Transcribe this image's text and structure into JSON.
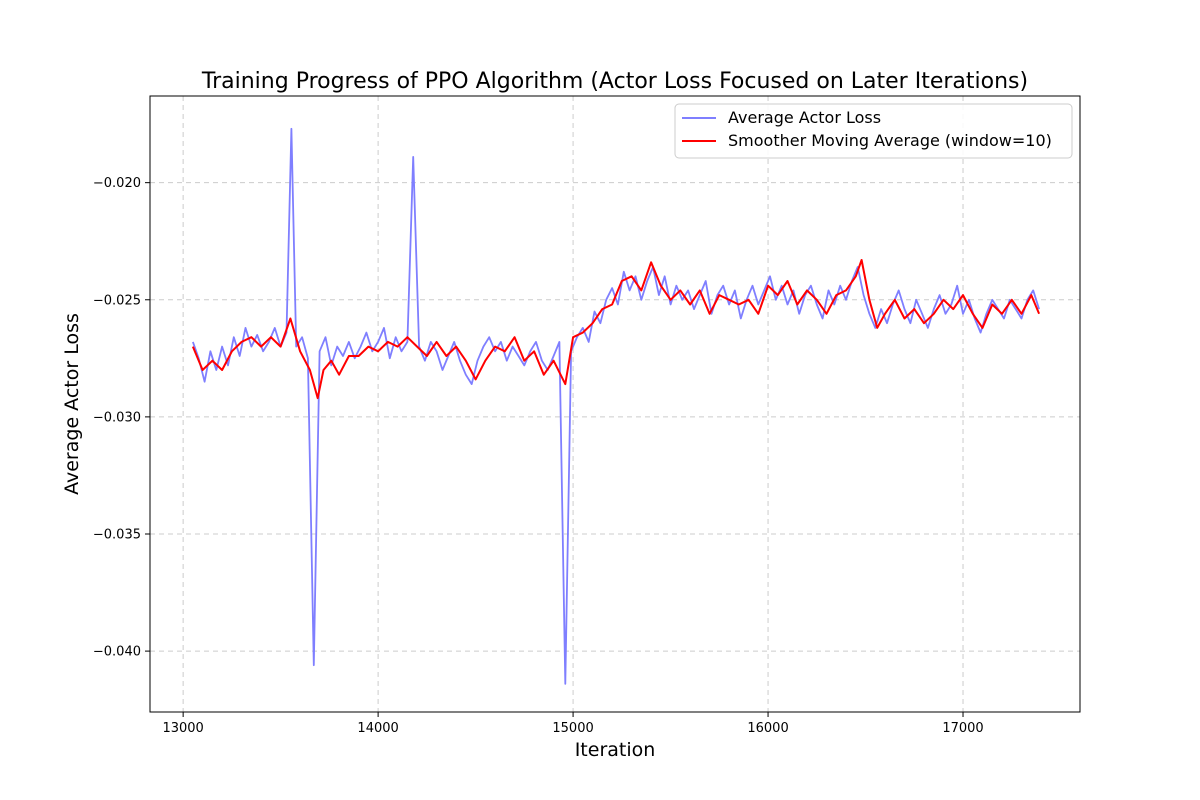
{
  "chart_data": {
    "type": "line",
    "title": "Training Progress of PPO Algorithm (Actor Loss Focused on Later Iterations)",
    "xlabel": "Iteration",
    "ylabel": "Average Actor Loss",
    "xlim": [
      12830,
      17600
    ],
    "ylim": [
      -0.0426,
      -0.0163
    ],
    "x_ticks": [
      13000,
      14000,
      15000,
      16000,
      17000
    ],
    "x_tick_labels": [
      "13000",
      "14000",
      "15000",
      "16000",
      "17000"
    ],
    "y_ticks": [
      -0.04,
      -0.035,
      -0.03,
      -0.025,
      -0.02
    ],
    "y_tick_labels": [
      "−0.040",
      "−0.035",
      "−0.030",
      "−0.025",
      "−0.020"
    ],
    "grid": true,
    "legend_position": "top-right",
    "series": [
      {
        "name": "Average Actor Loss",
        "color": "#7f7fff",
        "points": [
          [
            13050,
            -0.0268
          ],
          [
            13080,
            -0.0275
          ],
          [
            13110,
            -0.0285
          ],
          [
            13140,
            -0.0272
          ],
          [
            13170,
            -0.028
          ],
          [
            13200,
            -0.027
          ],
          [
            13230,
            -0.0278
          ],
          [
            13260,
            -0.0266
          ],
          [
            13290,
            -0.0274
          ],
          [
            13320,
            -0.0262
          ],
          [
            13350,
            -0.027
          ],
          [
            13380,
            -0.0265
          ],
          [
            13410,
            -0.0272
          ],
          [
            13440,
            -0.0268
          ],
          [
            13470,
            -0.0262
          ],
          [
            13500,
            -0.027
          ],
          [
            13530,
            -0.0264
          ],
          [
            13555,
            -0.0177
          ],
          [
            13580,
            -0.027
          ],
          [
            13610,
            -0.0266
          ],
          [
            13640,
            -0.0275
          ],
          [
            13670,
            -0.0406
          ],
          [
            13700,
            -0.0272
          ],
          [
            13730,
            -0.0266
          ],
          [
            13760,
            -0.0278
          ],
          [
            13790,
            -0.027
          ],
          [
            13820,
            -0.0274
          ],
          [
            13850,
            -0.0268
          ],
          [
            13880,
            -0.0275
          ],
          [
            13910,
            -0.027
          ],
          [
            13940,
            -0.0264
          ],
          [
            13970,
            -0.0272
          ],
          [
            14000,
            -0.0268
          ],
          [
            14030,
            -0.0262
          ],
          [
            14060,
            -0.0275
          ],
          [
            14090,
            -0.0266
          ],
          [
            14120,
            -0.0272
          ],
          [
            14150,
            -0.0268
          ],
          [
            14180,
            -0.0189
          ],
          [
            14210,
            -0.027
          ],
          [
            14240,
            -0.0276
          ],
          [
            14270,
            -0.0268
          ],
          [
            14300,
            -0.0272
          ],
          [
            14330,
            -0.028
          ],
          [
            14360,
            -0.0274
          ],
          [
            14390,
            -0.0268
          ],
          [
            14420,
            -0.0276
          ],
          [
            14450,
            -0.0282
          ],
          [
            14480,
            -0.0286
          ],
          [
            14510,
            -0.0276
          ],
          [
            14540,
            -0.027
          ],
          [
            14570,
            -0.0266
          ],
          [
            14600,
            -0.0272
          ],
          [
            14630,
            -0.0268
          ],
          [
            14660,
            -0.0276
          ],
          [
            14690,
            -0.027
          ],
          [
            14720,
            -0.0274
          ],
          [
            14750,
            -0.0278
          ],
          [
            14780,
            -0.0272
          ],
          [
            14810,
            -0.0268
          ],
          [
            14840,
            -0.0276
          ],
          [
            14870,
            -0.028
          ],
          [
            14900,
            -0.0274
          ],
          [
            14930,
            -0.0268
          ],
          [
            14960,
            -0.0414
          ],
          [
            14990,
            -0.0272
          ],
          [
            15020,
            -0.0266
          ],
          [
            15050,
            -0.0262
          ],
          [
            15080,
            -0.0268
          ],
          [
            15110,
            -0.0255
          ],
          [
            15140,
            -0.026
          ],
          [
            15170,
            -0.025
          ],
          [
            15200,
            -0.0245
          ],
          [
            15230,
            -0.0252
          ],
          [
            15260,
            -0.0238
          ],
          [
            15290,
            -0.0246
          ],
          [
            15320,
            -0.024
          ],
          [
            15350,
            -0.025
          ],
          [
            15380,
            -0.0242
          ],
          [
            15410,
            -0.0236
          ],
          [
            15440,
            -0.0248
          ],
          [
            15470,
            -0.024
          ],
          [
            15500,
            -0.0252
          ],
          [
            15530,
            -0.0244
          ],
          [
            15560,
            -0.025
          ],
          [
            15590,
            -0.0246
          ],
          [
            15620,
            -0.0254
          ],
          [
            15650,
            -0.0248
          ],
          [
            15680,
            -0.0242
          ],
          [
            15710,
            -0.0256
          ],
          [
            15740,
            -0.0248
          ],
          [
            15770,
            -0.0244
          ],
          [
            15800,
            -0.0252
          ],
          [
            15830,
            -0.0246
          ],
          [
            15860,
            -0.0258
          ],
          [
            15890,
            -0.025
          ],
          [
            15920,
            -0.0244
          ],
          [
            15950,
            -0.0252
          ],
          [
            15980,
            -0.0246
          ],
          [
            16010,
            -0.024
          ],
          [
            16040,
            -0.025
          ],
          [
            16070,
            -0.0244
          ],
          [
            16100,
            -0.0252
          ],
          [
            16130,
            -0.0246
          ],
          [
            16160,
            -0.0256
          ],
          [
            16190,
            -0.0248
          ],
          [
            16220,
            -0.0244
          ],
          [
            16250,
            -0.0252
          ],
          [
            16280,
            -0.0258
          ],
          [
            16310,
            -0.0246
          ],
          [
            16340,
            -0.0252
          ],
          [
            16370,
            -0.0244
          ],
          [
            16400,
            -0.025
          ],
          [
            16430,
            -0.0242
          ],
          [
            16460,
            -0.0236
          ],
          [
            16490,
            -0.0248
          ],
          [
            16520,
            -0.0256
          ],
          [
            16550,
            -0.0262
          ],
          [
            16580,
            -0.0254
          ],
          [
            16610,
            -0.026
          ],
          [
            16640,
            -0.0252
          ],
          [
            16670,
            -0.0246
          ],
          [
            16700,
            -0.0254
          ],
          [
            16730,
            -0.026
          ],
          [
            16760,
            -0.025
          ],
          [
            16790,
            -0.0256
          ],
          [
            16820,
            -0.0262
          ],
          [
            16850,
            -0.0254
          ],
          [
            16880,
            -0.0248
          ],
          [
            16910,
            -0.0256
          ],
          [
            16940,
            -0.0252
          ],
          [
            16970,
            -0.0244
          ],
          [
            17000,
            -0.0256
          ],
          [
            17030,
            -0.025
          ],
          [
            17060,
            -0.0258
          ],
          [
            17090,
            -0.0264
          ],
          [
            17120,
            -0.0256
          ],
          [
            17150,
            -0.025
          ],
          [
            17180,
            -0.0254
          ],
          [
            17210,
            -0.0258
          ],
          [
            17240,
            -0.025
          ],
          [
            17270,
            -0.0254
          ],
          [
            17300,
            -0.0258
          ],
          [
            17330,
            -0.025
          ],
          [
            17360,
            -0.0246
          ],
          [
            17390,
            -0.0254
          ]
        ]
      },
      {
        "name": "Smoother Moving Average (window=10)",
        "color": "#ff0000",
        "points": [
          [
            13050,
            -0.027
          ],
          [
            13100,
            -0.028
          ],
          [
            13150,
            -0.0276
          ],
          [
            13200,
            -0.028
          ],
          [
            13250,
            -0.0272
          ],
          [
            13300,
            -0.0268
          ],
          [
            13350,
            -0.0266
          ],
          [
            13400,
            -0.027
          ],
          [
            13450,
            -0.0266
          ],
          [
            13500,
            -0.027
          ],
          [
            13550,
            -0.0258
          ],
          [
            13600,
            -0.0272
          ],
          [
            13650,
            -0.028
          ],
          [
            13690,
            -0.0292
          ],
          [
            13720,
            -0.028
          ],
          [
            13760,
            -0.0276
          ],
          [
            13800,
            -0.0282
          ],
          [
            13850,
            -0.0274
          ],
          [
            13900,
            -0.0274
          ],
          [
            13950,
            -0.027
          ],
          [
            14000,
            -0.0272
          ],
          [
            14050,
            -0.0268
          ],
          [
            14100,
            -0.027
          ],
          [
            14150,
            -0.0266
          ],
          [
            14200,
            -0.027
          ],
          [
            14250,
            -0.0274
          ],
          [
            14300,
            -0.0268
          ],
          [
            14350,
            -0.0274
          ],
          [
            14400,
            -0.027
          ],
          [
            14450,
            -0.0276
          ],
          [
            14500,
            -0.0284
          ],
          [
            14550,
            -0.0276
          ],
          [
            14600,
            -0.027
          ],
          [
            14650,
            -0.0272
          ],
          [
            14700,
            -0.0266
          ],
          [
            14750,
            -0.0276
          ],
          [
            14800,
            -0.0272
          ],
          [
            14850,
            -0.0282
          ],
          [
            14900,
            -0.0276
          ],
          [
            14960,
            -0.0286
          ],
          [
            15000,
            -0.0266
          ],
          [
            15050,
            -0.0264
          ],
          [
            15100,
            -0.026
          ],
          [
            15150,
            -0.0254
          ],
          [
            15200,
            -0.0252
          ],
          [
            15250,
            -0.0242
          ],
          [
            15300,
            -0.024
          ],
          [
            15350,
            -0.0246
          ],
          [
            15400,
            -0.0234
          ],
          [
            15450,
            -0.0244
          ],
          [
            15500,
            -0.025
          ],
          [
            15550,
            -0.0246
          ],
          [
            15600,
            -0.0252
          ],
          [
            15650,
            -0.0246
          ],
          [
            15700,
            -0.0256
          ],
          [
            15750,
            -0.0248
          ],
          [
            15800,
            -0.025
          ],
          [
            15850,
            -0.0252
          ],
          [
            15900,
            -0.025
          ],
          [
            15950,
            -0.0256
          ],
          [
            16000,
            -0.0244
          ],
          [
            16050,
            -0.0248
          ],
          [
            16100,
            -0.0242
          ],
          [
            16150,
            -0.0252
          ],
          [
            16200,
            -0.0246
          ],
          [
            16250,
            -0.025
          ],
          [
            16300,
            -0.0256
          ],
          [
            16350,
            -0.0248
          ],
          [
            16400,
            -0.0246
          ],
          [
            16450,
            -0.024
          ],
          [
            16480,
            -0.0233
          ],
          [
            16520,
            -0.025
          ],
          [
            16560,
            -0.0262
          ],
          [
            16600,
            -0.0256
          ],
          [
            16650,
            -0.025
          ],
          [
            16700,
            -0.0258
          ],
          [
            16750,
            -0.0254
          ],
          [
            16800,
            -0.026
          ],
          [
            16850,
            -0.0256
          ],
          [
            16900,
            -0.025
          ],
          [
            16950,
            -0.0254
          ],
          [
            17000,
            -0.0248
          ],
          [
            17050,
            -0.0256
          ],
          [
            17100,
            -0.0262
          ],
          [
            17150,
            -0.0252
          ],
          [
            17200,
            -0.0256
          ],
          [
            17250,
            -0.025
          ],
          [
            17300,
            -0.0256
          ],
          [
            17350,
            -0.0248
          ],
          [
            17390,
            -0.0256
          ]
        ]
      }
    ]
  }
}
